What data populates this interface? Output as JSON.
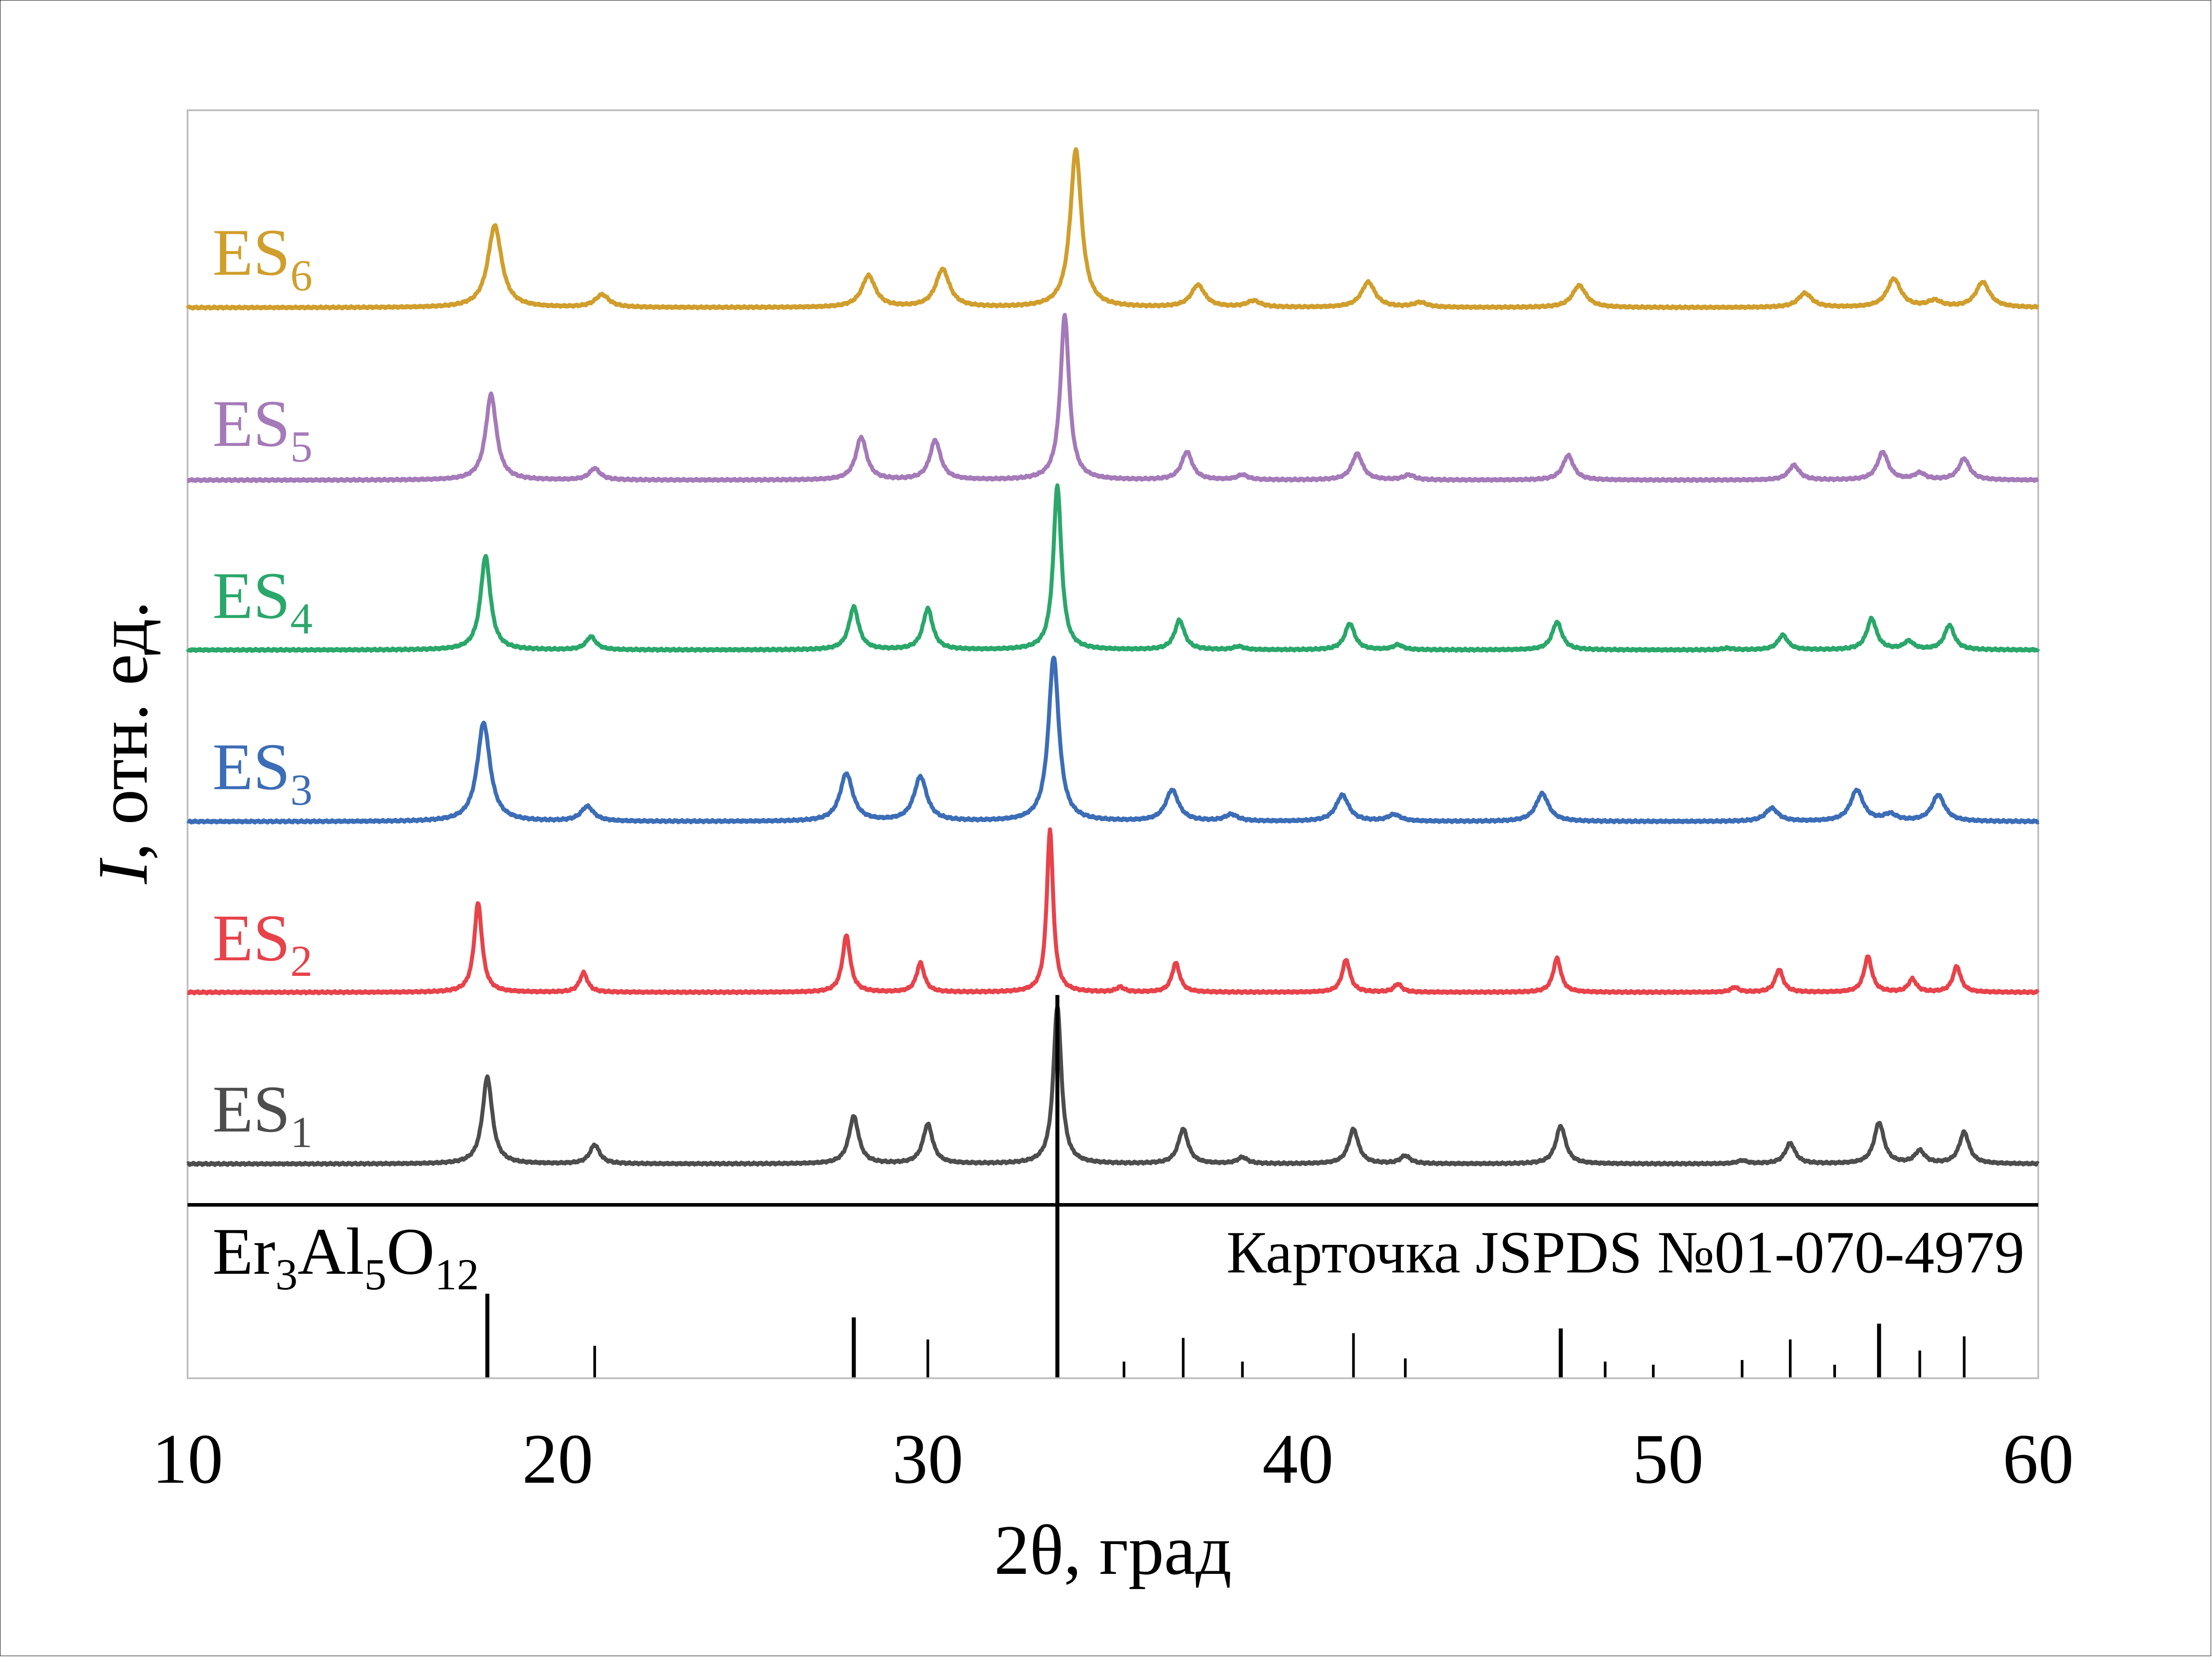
{
  "chart_data": {
    "type": "line",
    "title": "",
    "xlabel": "2θ, град",
    "ylabel": {
      "symbol": "I",
      "rest": ", отн. ед."
    },
    "xlim": [
      10,
      60
    ],
    "xticks": [
      10,
      20,
      30,
      40,
      50,
      60
    ],
    "grid": false,
    "layout": "stacked offset traces",
    "series": [
      {
        "name": "ES1",
        "label_main": "ES",
        "label_sub": "1",
        "color": "#4d4d4d",
        "width_scale": 1.0,
        "peaks": [
          [
            18.1,
            0.55
          ],
          [
            21.0,
            0.12
          ],
          [
            28.0,
            0.3
          ],
          [
            30.0,
            0.25
          ],
          [
            33.5,
            1.0
          ],
          [
            36.9,
            0.22
          ],
          [
            38.5,
            0.04
          ],
          [
            41.5,
            0.22
          ],
          [
            42.9,
            0.05
          ],
          [
            47.1,
            0.24
          ],
          [
            52.0,
            0.02
          ],
          [
            53.3,
            0.13
          ],
          [
            55.7,
            0.26
          ],
          [
            56.8,
            0.08
          ],
          [
            58.0,
            0.2
          ]
        ]
      },
      {
        "name": "ES2",
        "label_main": "ES",
        "label_sub": "2",
        "color": "#e8424a",
        "width_scale": 0.8,
        "peaks": [
          [
            17.85,
            0.55
          ],
          [
            20.7,
            0.12
          ],
          [
            27.8,
            0.35
          ],
          [
            29.8,
            0.18
          ],
          [
            33.3,
            1.0
          ],
          [
            35.2,
            0.03
          ],
          [
            36.7,
            0.18
          ],
          [
            41.3,
            0.2
          ],
          [
            42.7,
            0.05
          ],
          [
            47.0,
            0.21
          ],
          [
            51.8,
            0.03
          ],
          [
            53.0,
            0.14
          ],
          [
            55.4,
            0.22
          ],
          [
            56.6,
            0.08
          ],
          [
            57.8,
            0.16
          ]
        ]
      },
      {
        "name": "ES3",
        "label_main": "ES",
        "label_sub": "3",
        "color": "#3c6db7",
        "width_scale": 1.3,
        "peaks": [
          [
            18.0,
            0.6
          ],
          [
            20.8,
            0.09
          ],
          [
            27.8,
            0.29
          ],
          [
            29.8,
            0.27
          ],
          [
            33.4,
            1.0
          ],
          [
            36.6,
            0.19
          ],
          [
            38.2,
            0.04
          ],
          [
            41.2,
            0.16
          ],
          [
            42.6,
            0.04
          ],
          [
            46.6,
            0.17
          ],
          [
            52.8,
            0.08
          ],
          [
            55.1,
            0.19
          ],
          [
            56.0,
            0.04
          ],
          [
            57.3,
            0.16
          ]
        ]
      },
      {
        "name": "ES4",
        "label_main": "ES",
        "label_sub": "4",
        "color": "#2aa76a",
        "width_scale": 1.0,
        "peaks": [
          [
            18.05,
            0.57
          ],
          [
            20.9,
            0.08
          ],
          [
            28.0,
            0.26
          ],
          [
            30.0,
            0.25
          ],
          [
            33.5,
            1.0
          ],
          [
            36.8,
            0.18
          ],
          [
            38.4,
            0.02
          ],
          [
            41.4,
            0.16
          ],
          [
            42.7,
            0.03
          ],
          [
            47.0,
            0.17
          ],
          [
            51.6,
            0.01
          ],
          [
            53.1,
            0.09
          ],
          [
            55.5,
            0.19
          ],
          [
            56.5,
            0.05
          ],
          [
            57.6,
            0.15
          ]
        ]
      },
      {
        "name": "ES5",
        "label_main": "ES",
        "label_sub": "5",
        "color": "#a57ab8",
        "width_scale": 1.1,
        "peaks": [
          [
            18.2,
            0.52
          ],
          [
            21.0,
            0.07
          ],
          [
            28.2,
            0.26
          ],
          [
            30.2,
            0.24
          ],
          [
            33.7,
            1.0
          ],
          [
            37.0,
            0.17
          ],
          [
            38.5,
            0.03
          ],
          [
            41.6,
            0.16
          ],
          [
            43.0,
            0.03
          ],
          [
            47.3,
            0.15
          ],
          [
            53.4,
            0.09
          ],
          [
            55.8,
            0.17
          ],
          [
            56.8,
            0.04
          ],
          [
            58.0,
            0.13
          ]
        ]
      },
      {
        "name": "ES6",
        "label_main": "ES",
        "label_sub": "6",
        "color": "#d09e2c",
        "width_scale": 1.4,
        "peaks": [
          [
            18.3,
            0.52
          ],
          [
            21.2,
            0.08
          ],
          [
            28.4,
            0.2
          ],
          [
            30.4,
            0.24
          ],
          [
            34.0,
            1.0
          ],
          [
            37.3,
            0.14
          ],
          [
            38.8,
            0.04
          ],
          [
            41.9,
            0.16
          ],
          [
            43.3,
            0.03
          ],
          [
            47.6,
            0.14
          ],
          [
            53.7,
            0.09
          ],
          [
            56.1,
            0.18
          ],
          [
            57.2,
            0.04
          ],
          [
            58.5,
            0.16
          ]
        ]
      }
    ],
    "reference": {
      "formula": [
        {
          "t": "Er"
        },
        {
          "t": "3",
          "sub": true
        },
        {
          "t": "Al"
        },
        {
          "t": "5",
          "sub": true
        },
        {
          "t": "O"
        },
        {
          "t": "12",
          "sub": true
        }
      ],
      "card_label": "Карточка JSPDS №01-070-4979",
      "lines": [
        [
          18.1,
          0.53
        ],
        [
          21.0,
          0.2
        ],
        [
          28.0,
          0.38
        ],
        [
          30.0,
          0.24
        ],
        [
          33.5,
          1.0
        ],
        [
          35.3,
          0.1
        ],
        [
          36.9,
          0.25
        ],
        [
          38.5,
          0.1
        ],
        [
          41.5,
          0.28
        ],
        [
          42.9,
          0.12
        ],
        [
          47.1,
          0.31
        ],
        [
          48.3,
          0.1
        ],
        [
          49.6,
          0.08
        ],
        [
          52.0,
          0.11
        ],
        [
          53.3,
          0.24
        ],
        [
          54.5,
          0.08
        ],
        [
          55.7,
          0.34
        ],
        [
          56.8,
          0.17
        ],
        [
          58.0,
          0.26
        ]
      ]
    }
  }
}
